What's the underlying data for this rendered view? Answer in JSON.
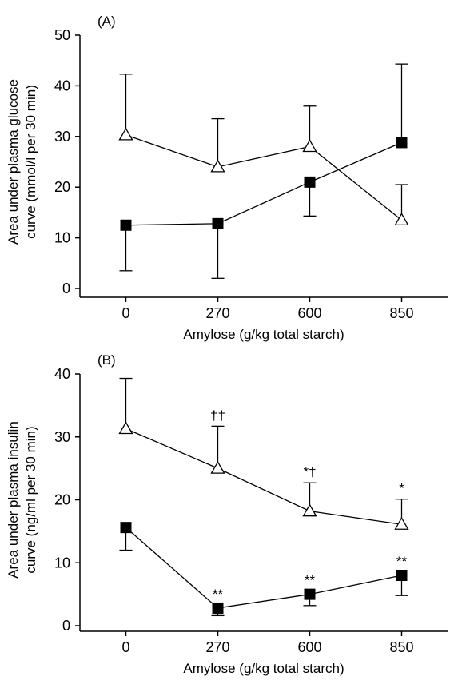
{
  "chart_data": [
    {
      "type": "line",
      "title": "(A)",
      "ylabel": [
        "Area under plasma glucose",
        "curve (mmol/l per 30 min)"
      ],
      "xlabel": "Amylose (g/kg total starch)",
      "categories": [
        "0",
        "270",
        "600",
        "850"
      ],
      "ylim": [
        0,
        50
      ],
      "yticks": [
        0,
        10,
        20,
        30,
        40,
        50
      ],
      "series": [
        {
          "marker": "triangle",
          "color": "#000000",
          "values": [
            30.3,
            24,
            28,
            13.5
          ],
          "errors_up": [
            12,
            9.5,
            8,
            7
          ],
          "errors_down": [
            null,
            null,
            null,
            null
          ]
        },
        {
          "marker": "square",
          "color": "#000000",
          "values": [
            12.5,
            12.8,
            21,
            28.8
          ],
          "errors_up": [
            null,
            null,
            null,
            15.5
          ],
          "errors_down": [
            9,
            10.8,
            6.7,
            null
          ]
        }
      ]
    },
    {
      "type": "line",
      "title": "(B)",
      "ylabel": [
        "Area under plasma insulin",
        "curve (ng/ml per 30 min)"
      ],
      "xlabel": "Amylose (g/kg total starch)",
      "categories": [
        "0",
        "270",
        "600",
        "850"
      ],
      "ylim": [
        0,
        40
      ],
      "yticks": [
        0,
        10,
        20,
        30,
        40
      ],
      "series": [
        {
          "marker": "triangle",
          "color": "#000000",
          "values": [
            31.3,
            25,
            18.2,
            16.1
          ],
          "errors_up": [
            8,
            6.7,
            4.5,
            4
          ],
          "errors_down": [
            null,
            null,
            null,
            null
          ],
          "annotations": [
            null,
            "††",
            "*†",
            "*"
          ]
        },
        {
          "marker": "square",
          "color": "#000000",
          "values": [
            15.6,
            2.8,
            5,
            8
          ],
          "errors_up": [
            null,
            null,
            null,
            null
          ],
          "errors_down": [
            3.6,
            1.2,
            1.8,
            3.2
          ],
          "annotations": [
            null,
            "**",
            "**",
            "**"
          ]
        }
      ]
    }
  ]
}
